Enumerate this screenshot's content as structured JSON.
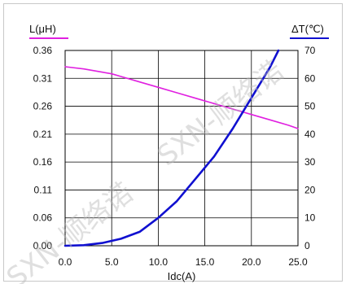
{
  "chart_data": {
    "type": "line",
    "title": "",
    "xlabel": "Idc(A)",
    "xlim": [
      0,
      25
    ],
    "xticks": [
      "0.0",
      "5.0",
      "10.0",
      "15.0",
      "20.0",
      "25.0"
    ],
    "left_axis": {
      "label": "L(μH)",
      "ylim": [
        0,
        0.36
      ],
      "ticks": [
        "0.00",
        "0.06",
        "0.11",
        "0.16",
        "0.21",
        "0.26",
        "0.31",
        "0.36"
      ]
    },
    "right_axis": {
      "label": "ΔT(℃)",
      "ylim": [
        0,
        70
      ],
      "ticks": [
        "0",
        "10",
        "20",
        "30",
        "40",
        "50",
        "60",
        "70"
      ]
    },
    "grid": true,
    "series": [
      {
        "name": "L(μH)",
        "axis": "left",
        "color": "#e020e0",
        "x": [
          0,
          2,
          4,
          5,
          6,
          8,
          10,
          12,
          14,
          16,
          18,
          20,
          22,
          24,
          25
        ],
        "values": [
          0.33,
          0.326,
          0.32,
          0.317,
          0.312,
          0.302,
          0.292,
          0.282,
          0.272,
          0.262,
          0.252,
          0.242,
          0.232,
          0.222,
          0.216
        ]
      },
      {
        "name": "ΔT(℃)",
        "axis": "right",
        "color": "#1010d0",
        "x": [
          0,
          2,
          4,
          6,
          8,
          10,
          12,
          14,
          16,
          18,
          20,
          22,
          22.9
        ],
        "values": [
          0,
          0.2,
          1.0,
          2.5,
          5.0,
          10.0,
          16.0,
          24.0,
          32.0,
          42.0,
          53.0,
          64.0,
          70.0
        ]
      }
    ],
    "watermark": "SXN-顺络诺"
  }
}
